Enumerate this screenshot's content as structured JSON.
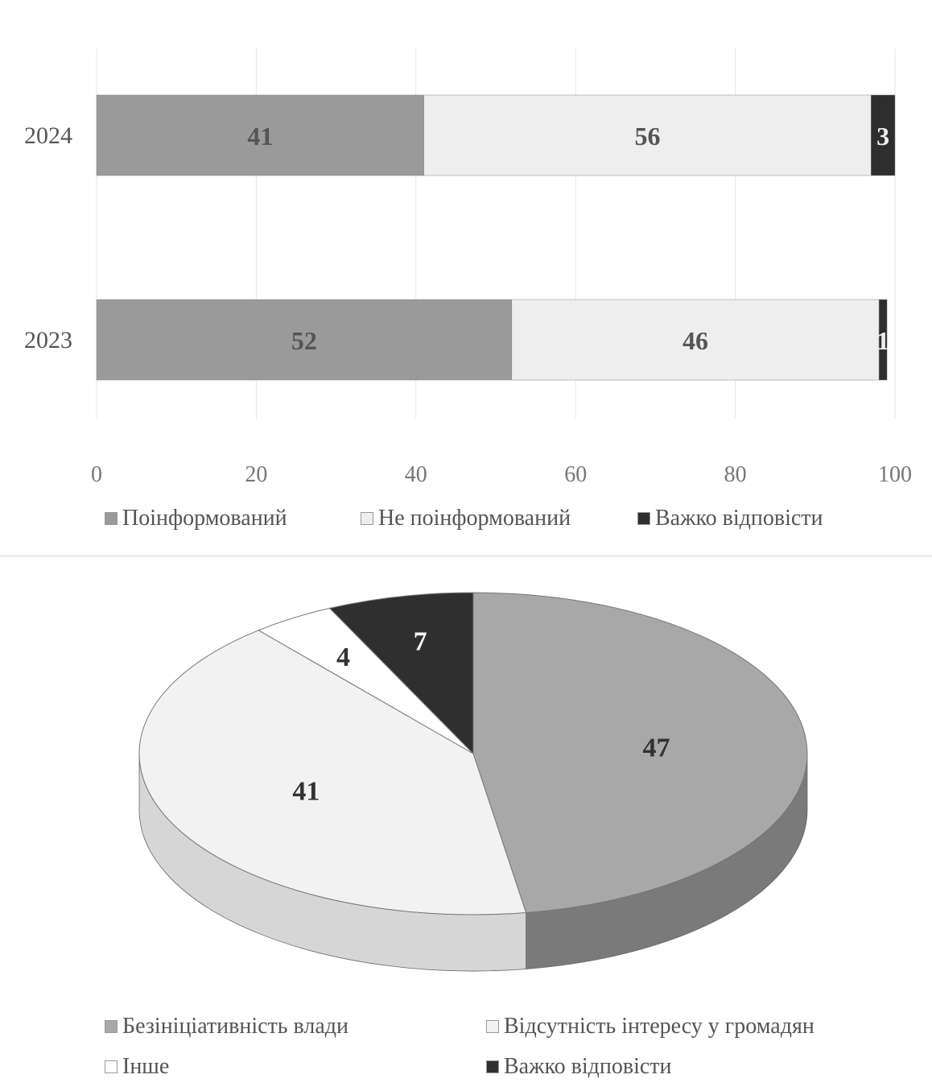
{
  "colors": {
    "informed": "#9a9a9a",
    "not_informed": "#eeeeee",
    "hard": "#2e2e2e",
    "lack_initiative": "#a8a8a8",
    "no_interest": "#f2f2f2",
    "other": "#ffffff",
    "hard_to_answer": "#2f2f2f"
  },
  "chart_data": [
    {
      "type": "bar",
      "orientation": "horizontal",
      "stacked": true,
      "categories": [
        "2024",
        "2023"
      ],
      "series": [
        {
          "name": "Поінформований",
          "values": [
            41,
            52
          ]
        },
        {
          "name": "Не поінформований",
          "values": [
            56,
            46
          ]
        },
        {
          "name": "Важко відповісти",
          "values": [
            3,
            1
          ]
        }
      ],
      "xlim": [
        0,
        100
      ],
      "xticks": [
        "0",
        "20",
        "40",
        "60",
        "80",
        "100"
      ],
      "grid": true,
      "legend_position": "bottom"
    },
    {
      "type": "pie",
      "style": "3d",
      "slices": [
        {
          "name": "Безініціативність влади",
          "value": 47
        },
        {
          "name": "Відсутність інтересу у громадян",
          "value": 41
        },
        {
          "name": "Інше",
          "value": 4
        },
        {
          "name": "Важко відповісти",
          "value": 7
        }
      ],
      "legend_position": "bottom"
    }
  ]
}
